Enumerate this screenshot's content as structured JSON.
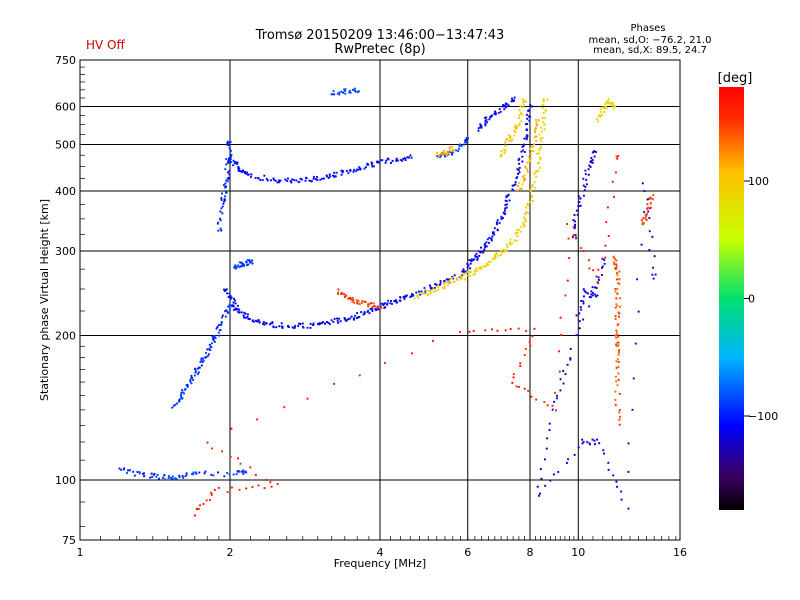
{
  "chart_data": {
    "type": "scatter",
    "title": "Tromsø 20150209 13:46:00−13:47:43",
    "subtitle": "RwPretec (8p)",
    "status": "HV Off",
    "xlabel": "Frequency [MHz]",
    "ylabel": "Stationary phase Virtual Height [km]",
    "xscale": "log",
    "yscale": "log",
    "xlim": [
      1,
      16
    ],
    "ylim": [
      75,
      750
    ],
    "xticks": [
      1,
      2,
      4,
      6,
      8,
      10,
      16
    ],
    "xtick_labels": [
      "1",
      "2",
      "4",
      "6",
      "8",
      "10",
      "16"
    ],
    "yticks": [
      75,
      100,
      200,
      300,
      400,
      500,
      600,
      750
    ],
    "ytick_labels": [
      "75",
      "100",
      "200",
      "300",
      "400",
      "500",
      "600",
      "750"
    ],
    "grid": true,
    "phase_info": {
      "title": "Phases",
      "line1": "mean, sd,O: −76.2, 21.0",
      "line2": "mean, sd,X:  89.5, 24.7"
    },
    "colorbar": {
      "label": "[deg]",
      "range": [
        -180,
        180
      ],
      "ticks": [
        100,
        0,
        -100
      ],
      "tick_labels": [
        "100",
        "0",
        "−100"
      ]
    },
    "traces": [
      {
        "points": [
          [
            1.55,
            143
          ],
          [
            1.6,
            150
          ],
          [
            1.65,
            158
          ],
          [
            1.7,
            166
          ],
          [
            1.75,
            175
          ],
          [
            1.8,
            185
          ],
          [
            1.85,
            195
          ],
          [
            1.9,
            205
          ],
          [
            1.95,
            218
          ],
          [
            2.0,
            232
          ]
        ],
        "phase": -95
      },
      {
        "points": [
          [
            1.9,
            330
          ],
          [
            1.92,
            370
          ],
          [
            1.95,
            400
          ],
          [
            1.97,
            430
          ],
          [
            1.99,
            470
          ],
          [
            2.0,
            510
          ]
        ],
        "phase": -98
      },
      {
        "points": [
          [
            2.0,
            470
          ],
          [
            2.05,
            455
          ],
          [
            2.1,
            440
          ],
          [
            2.2,
            430
          ],
          [
            2.4,
            423
          ],
          [
            2.6,
            420
          ],
          [
            2.8,
            422
          ],
          [
            3.0,
            425
          ],
          [
            3.2,
            430
          ],
          [
            3.4,
            437
          ],
          [
            3.6,
            445
          ],
          [
            3.8,
            452
          ],
          [
            4.0,
            458
          ],
          [
            4.3,
            465
          ],
          [
            4.6,
            470
          ]
        ],
        "phase": -105
      },
      {
        "points": [
          [
            1.95,
            250
          ],
          [
            2.0,
            240
          ],
          [
            2.05,
            230
          ],
          [
            2.1,
            222
          ],
          [
            2.2,
            216
          ],
          [
            2.35,
            212
          ],
          [
            2.5,
            210
          ],
          [
            2.7,
            209
          ],
          [
            2.9,
            210
          ],
          [
            3.1,
            212
          ],
          [
            3.3,
            215
          ],
          [
            3.5,
            218
          ],
          [
            3.7,
            222
          ],
          [
            3.9,
            227
          ],
          [
            4.1,
            232
          ],
          [
            4.3,
            236
          ],
          [
            4.5,
            240
          ],
          [
            4.8,
            246
          ],
          [
            5.1,
            252
          ],
          [
            5.4,
            258
          ],
          [
            5.7,
            265
          ],
          [
            6.0,
            275
          ]
        ],
        "phase": -110
      },
      {
        "points": [
          [
            6.0,
            280
          ],
          [
            6.2,
            290
          ],
          [
            6.4,
            300
          ],
          [
            6.6,
            315
          ],
          [
            6.8,
            330
          ],
          [
            7.0,
            355
          ],
          [
            7.2,
            380
          ],
          [
            7.4,
            410
          ],
          [
            7.6,
            450
          ],
          [
            7.8,
            500
          ],
          [
            7.9,
            540
          ],
          [
            8.0,
            600
          ]
        ],
        "phase": -112
      },
      {
        "points": [
          [
            6.3,
            540
          ],
          [
            6.5,
            560
          ],
          [
            6.8,
            580
          ],
          [
            7.1,
            600
          ],
          [
            7.4,
            620
          ]
        ],
        "phase": -110
      },
      {
        "points": [
          [
            1.2,
            105
          ],
          [
            1.3,
            103
          ],
          [
            1.4,
            102
          ],
          [
            1.5,
            101
          ],
          [
            1.6,
            102
          ],
          [
            1.7,
            103
          ],
          [
            2.05,
            103
          ],
          [
            2.15,
            104
          ]
        ],
        "phase": -92
      },
      {
        "points": [
          [
            2.05,
            275
          ],
          [
            2.1,
            280
          ],
          [
            2.15,
            283
          ],
          [
            2.2,
            285
          ]
        ],
        "phase": -90
      },
      {
        "points": [
          [
            3.2,
            640
          ],
          [
            3.4,
            645
          ],
          [
            3.6,
            650
          ]
        ],
        "phase": -90
      },
      {
        "points": [
          [
            5.2,
            470
          ],
          [
            5.5,
            480
          ],
          [
            5.8,
            495
          ],
          [
            6.0,
            515
          ]
        ],
        "phase": -90
      },
      {
        "points": [
          [
            3.3,
            248
          ],
          [
            3.45,
            240
          ],
          [
            3.6,
            235
          ],
          [
            3.8,
            232
          ],
          [
            4.0,
            230
          ]
        ],
        "phase": 150
      },
      {
        "points": [
          [
            4.7,
            240
          ],
          [
            5.0,
            246
          ],
          [
            5.3,
            253
          ],
          [
            5.6,
            260
          ],
          [
            5.9,
            265
          ],
          [
            6.2,
            272
          ],
          [
            6.5,
            280
          ],
          [
            6.8,
            290
          ],
          [
            7.1,
            300
          ],
          [
            7.4,
            315
          ],
          [
            7.7,
            335
          ],
          [
            7.9,
            360
          ],
          [
            8.1,
            400
          ],
          [
            8.3,
            450
          ],
          [
            8.4,
            500
          ],
          [
            8.5,
            560
          ],
          [
            8.6,
            620
          ]
        ],
        "phase": 95
      },
      {
        "points": [
          [
            7.6,
            400
          ],
          [
            7.8,
            430
          ],
          [
            8.0,
            470
          ],
          [
            8.2,
            520
          ],
          [
            8.3,
            560
          ]
        ],
        "phase": 110
      },
      {
        "points": [
          [
            7.0,
            470
          ],
          [
            7.2,
            500
          ],
          [
            7.4,
            530
          ],
          [
            7.6,
            560
          ],
          [
            7.8,
            620
          ]
        ],
        "phase": 100
      },
      {
        "points": [
          [
            5.2,
            475
          ],
          [
            5.4,
            480
          ],
          [
            5.6,
            490
          ]
        ],
        "phase": 115
      },
      {
        "points": [
          [
            9.8,
            320
          ],
          [
            9.9,
            360
          ],
          [
            10.2,
            400
          ],
          [
            10.5,
            450
          ],
          [
            10.8,
            480
          ]
        ],
        "phase": -120
      },
      {
        "points": [
          [
            11.0,
            560
          ],
          [
            11.2,
            590
          ],
          [
            11.5,
            620
          ],
          [
            11.8,
            600
          ]
        ],
        "phase": 90
      },
      {
        "points": [
          [
            12.0,
            130
          ],
          [
            12.0,
            160
          ],
          [
            12.0,
            185
          ],
          [
            12.0,
            200
          ],
          [
            12.0,
            225
          ],
          [
            12.0,
            250
          ],
          [
            12.0,
            275
          ],
          [
            11.8,
            290
          ]
        ],
        "phase": 140
      },
      {
        "points": [
          [
            13.5,
            340
          ],
          [
            13.8,
            360
          ],
          [
            14.0,
            390
          ]
        ],
        "phase": 150
      },
      {
        "points": [
          [
            10.0,
            215
          ],
          [
            10.3,
            250
          ],
          [
            10.8,
            240
          ],
          [
            11.3,
            290
          ],
          [
            9.6,
            180
          ],
          [
            9.0,
            145
          ],
          [
            8.3,
            92
          ],
          [
            10.2,
            120
          ],
          [
            11.0,
            120
          ],
          [
            12.5,
            88
          ],
          [
            13.6,
            420
          ],
          [
            14.2,
            265
          ]
        ],
        "phase": -118
      },
      {
        "points": [
          [
            1.7,
            85
          ],
          [
            1.85,
            95
          ],
          [
            2.5,
            97
          ],
          [
            1.8,
            120
          ],
          [
            5.8,
            205
          ],
          [
            8.2,
            205
          ],
          [
            7.3,
            160
          ],
          [
            9.0,
            140
          ],
          [
            9.6,
            345
          ],
          [
            11.0,
            255
          ],
          [
            12.0,
            470
          ]
        ],
        "phase": 160
      }
    ]
  }
}
